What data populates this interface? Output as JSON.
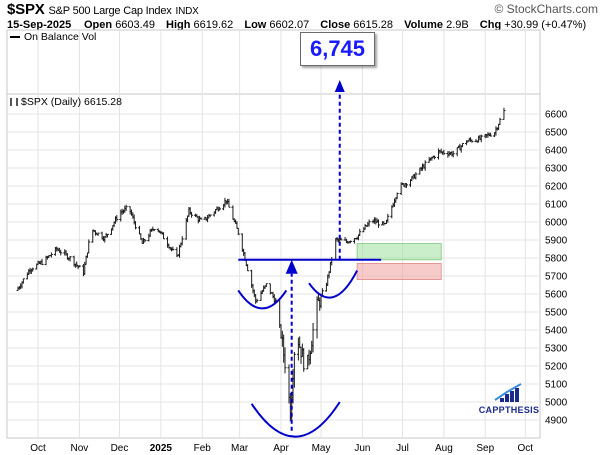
{
  "header": {
    "symbol": "$SPX",
    "name": "S&P 500 Large Cap Index",
    "exchange": "INDX",
    "date": "15-Sep-2025",
    "open_label": "Open",
    "open": "6603.49",
    "high_label": "High",
    "high": "6619.62",
    "low_label": "Low",
    "low": "6602.07",
    "close_label": "Close",
    "close": "6615.28",
    "volume_label": "Volume",
    "volume": "2.9B",
    "chg_label": "Chg",
    "chg": "+30.99 (+0.47%)",
    "brand": "© StockCharts.com"
  },
  "legend": {
    "obv": "On Balance Vol",
    "price": "$SPX (Daily) 6615.28"
  },
  "annotations": {
    "target": "6,745",
    "neckline": 5790,
    "target_value": 6745,
    "green_box": [
      5790,
      5880
    ],
    "red_box": [
      5680,
      5770
    ]
  },
  "watermark": "CAPPTHESIS",
  "colors": {
    "annotation": "#0000cc",
    "target_text": "#1a1aff",
    "candle": "#1a1a1a",
    "grid": "#e4e4e4",
    "green_box": "#9ee09e",
    "red_box": "#f2a0a0"
  },
  "chart_data": {
    "type": "line",
    "style": "ohlc",
    "series": [
      {
        "name": "$SPX (Daily)",
        "x": [
          "2024-09-15",
          "2024-09-25",
          "2024-10-05",
          "2024-10-15",
          "2024-10-25",
          "2024-11-04",
          "2024-11-10",
          "2024-11-20",
          "2024-12-01",
          "2024-12-08",
          "2024-12-18",
          "2024-12-28",
          "2025-01-08",
          "2025-01-13",
          "2025-01-22",
          "2025-02-01",
          "2025-02-10",
          "2025-02-19",
          "2025-02-28",
          "2025-03-06",
          "2025-03-13",
          "2025-03-21",
          "2025-03-28",
          "2025-04-04",
          "2025-04-08",
          "2025-04-12",
          "2025-04-20",
          "2025-04-28",
          "2025-05-05",
          "2025-05-12",
          "2025-05-20",
          "2025-05-28",
          "2025-06-08",
          "2025-06-18",
          "2025-06-28",
          "2025-07-08",
          "2025-07-18",
          "2025-07-28",
          "2025-08-08",
          "2025-08-18",
          "2025-08-28",
          "2025-09-08",
          "2025-09-15"
        ],
        "values": [
          5620,
          5740,
          5780,
          5850,
          5800,
          5720,
          5960,
          5910,
          6050,
          6080,
          5880,
          5980,
          5860,
          5800,
          6060,
          6000,
          6060,
          6120,
          5940,
          5770,
          5560,
          5650,
          5560,
          5220,
          4950,
          5400,
          5170,
          5530,
          5660,
          5900,
          5890,
          5920,
          6010,
          5980,
          6190,
          6240,
          6320,
          6390,
          6380,
          6450,
          6460,
          6500,
          6615
        ]
      }
    ],
    "ylim": [
      4800,
      6700
    ],
    "yticks": [
      4900,
      5000,
      5100,
      5200,
      5300,
      5400,
      5500,
      5600,
      5700,
      5800,
      5900,
      6000,
      6100,
      6200,
      6300,
      6400,
      6500,
      6600
    ],
    "xticks": [
      {
        "date": "2024-10-01",
        "label": "Oct"
      },
      {
        "date": "2024-11-01",
        "label": "Nov"
      },
      {
        "date": "2024-12-01",
        "label": "Dec"
      },
      {
        "date": "2025-01-01",
        "label": "2025"
      },
      {
        "date": "2025-02-01",
        "label": "Feb"
      },
      {
        "date": "2025-03-01",
        "label": "Mar"
      },
      {
        "date": "2025-04-01",
        "label": "Apr"
      },
      {
        "date": "2025-05-01",
        "label": "May"
      },
      {
        "date": "2025-06-01",
        "label": "Jun"
      },
      {
        "date": "2025-07-01",
        "label": "Jul"
      },
      {
        "date": "2025-08-01",
        "label": "Aug"
      },
      {
        "date": "2025-09-01",
        "label": "Sep"
      },
      {
        "date": "2025-10-01",
        "label": "Oct"
      }
    ],
    "xrange": [
      "2024-09-10",
      "2025-10-12"
    ],
    "grid": true
  }
}
